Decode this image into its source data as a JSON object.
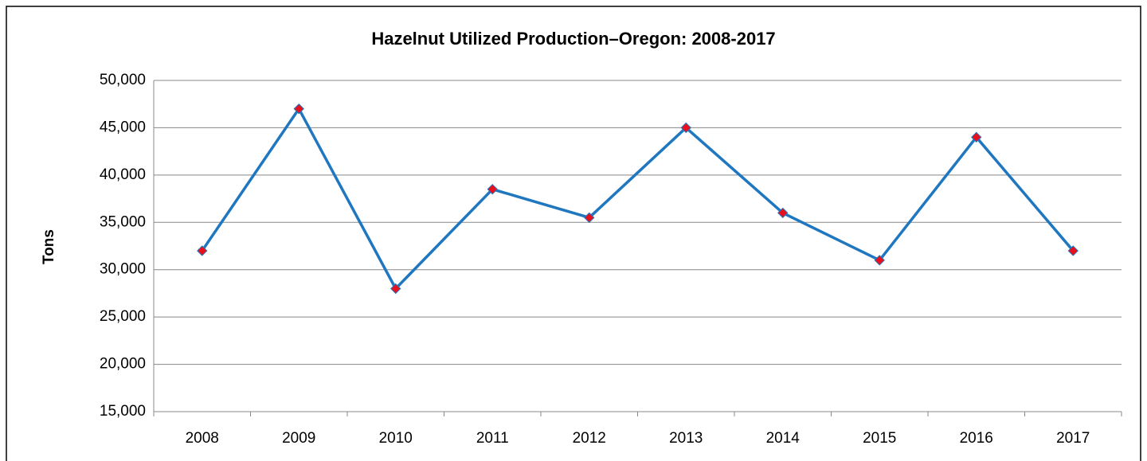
{
  "chart_data": {
    "type": "line",
    "title": "Hazelnut Utilized Production–Oregon: 2008-2017",
    "y_label": "Tons",
    "categories": [
      "2008",
      "2009",
      "2010",
      "2011",
      "2012",
      "2013",
      "2014",
      "2015",
      "2016",
      "2017"
    ],
    "values": [
      32000,
      47000,
      28000,
      38500,
      35500,
      45000,
      36000,
      31000,
      44000,
      32000
    ],
    "color": "#1f77c0",
    "marker_color": "#e8101c",
    "ylim": [
      15000,
      50000
    ],
    "yticks": [
      {
        "value": 15000,
        "label": "15,000"
      },
      {
        "value": 20000,
        "label": "20,000"
      },
      {
        "value": 25000,
        "label": "25,000"
      },
      {
        "value": 30000,
        "label": "30,000"
      },
      {
        "value": 35000,
        "label": "35,000"
      },
      {
        "value": 40000,
        "label": "40,000"
      },
      {
        "value": 45000,
        "label": "45,000"
      },
      {
        "value": 50000,
        "label": "50,000"
      }
    ],
    "grid": true
  }
}
